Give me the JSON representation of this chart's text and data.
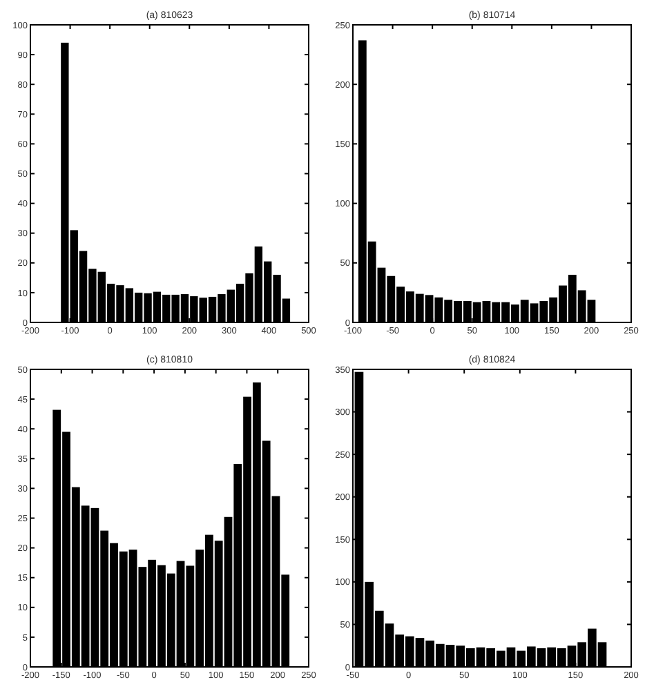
{
  "chart_data": [
    {
      "type": "histogram",
      "title": "(a) 810623",
      "color": "#000000",
      "xlim": [
        -200,
        500
      ],
      "xticks": [
        -200,
        -100,
        0,
        100,
        200,
        300,
        400,
        500
      ],
      "ylim": [
        0,
        100
      ],
      "yticks": [
        0,
        10,
        20,
        30,
        40,
        50,
        60,
        70,
        80,
        90,
        100
      ],
      "bins": [
        -125,
        -101.8,
        -78.6,
        -55.4,
        -32.2,
        -9,
        14.2,
        37.4,
        60.6,
        83.8,
        107,
        130.2,
        153.4,
        176.6,
        199.8,
        223,
        246.2,
        269.4,
        292.6,
        315.8,
        339,
        362.2,
        385.4,
        408.6,
        431.8,
        455
      ],
      "values": [
        94,
        31,
        24,
        18,
        17,
        13,
        12.5,
        11.5,
        10,
        9.8,
        10.3,
        9.3,
        9.3,
        9.5,
        8.8,
        8.3,
        8.6,
        9.5,
        11,
        13,
        16.5,
        25.5,
        20.5,
        16,
        8
      ]
    },
    {
      "type": "histogram",
      "title": "(b) 810714",
      "color": "#000000",
      "xlim": [
        -100,
        250
      ],
      "xticks": [
        -100,
        -50,
        0,
        50,
        100,
        150,
        200,
        250
      ],
      "ylim": [
        0,
        250
      ],
      "yticks": [
        0,
        50,
        100,
        150,
        200,
        250
      ],
      "bins": [
        -94,
        -82,
        -70,
        -58,
        -46,
        -34,
        -22,
        -10,
        2,
        14,
        26,
        38,
        50,
        62,
        74,
        86,
        98,
        110,
        122,
        134,
        146,
        158,
        170,
        182,
        194,
        206
      ],
      "values": [
        237,
        68,
        46,
        39,
        30,
        26,
        24,
        23,
        21,
        19,
        18,
        18,
        17,
        18,
        17,
        17,
        15,
        19,
        16,
        18,
        21,
        31,
        40,
        27,
        19
      ]
    },
    {
      "type": "histogram",
      "title": "(c) 810810",
      "color": "#000000",
      "xlim": [
        -200,
        250
      ],
      "xticks": [
        -200,
        -150,
        -100,
        -50,
        0,
        50,
        100,
        150,
        200,
        250
      ],
      "ylim": [
        0,
        50
      ],
      "yticks": [
        0,
        5,
        10,
        15,
        20,
        25,
        30,
        35,
        40,
        45,
        50
      ],
      "bins": [
        -165,
        -149.6,
        -134.2,
        -118.8,
        -103.4,
        -88,
        -72.6,
        -57.2,
        -41.8,
        -26.4,
        -11,
        4.4,
        19.8,
        35.2,
        50.6,
        66,
        81.4,
        96.8,
        112.2,
        127.6,
        143,
        158.4,
        173.8,
        189.2,
        204.6,
        220
      ],
      "values": [
        43.2,
        39.5,
        30.2,
        27.1,
        26.7,
        22.9,
        20.8,
        19.4,
        19.7,
        16.8,
        18,
        17.1,
        15.7,
        17.8,
        17,
        19.7,
        22.2,
        21.2,
        25.2,
        34.1,
        45.4,
        47.8,
        38,
        28.7,
        15.5
      ]
    },
    {
      "type": "histogram",
      "title": "(d) 810824",
      "color": "#000000",
      "xlim": [
        -50,
        200
      ],
      "xticks": [
        -50,
        0,
        50,
        100,
        150,
        200
      ],
      "ylim": [
        0,
        350
      ],
      "yticks": [
        0,
        50,
        100,
        150,
        200,
        250,
        300,
        350
      ],
      "bins": [
        -49,
        -39.9,
        -30.8,
        -21.7,
        -12.6,
        -3.5,
        5.6,
        14.7,
        23.8,
        32.9,
        42,
        51.1,
        60.2,
        69.3,
        78.4,
        87.5,
        96.6,
        105.7,
        114.8,
        123.9,
        133,
        142.1,
        151.2,
        160.3,
        169.4,
        178.5
      ],
      "values": [
        347,
        100,
        66,
        51,
        38,
        36,
        34,
        31,
        27,
        26,
        25,
        22,
        23,
        22,
        19,
        23,
        19,
        24,
        22,
        23,
        22,
        25,
        29,
        45,
        29
      ]
    }
  ]
}
